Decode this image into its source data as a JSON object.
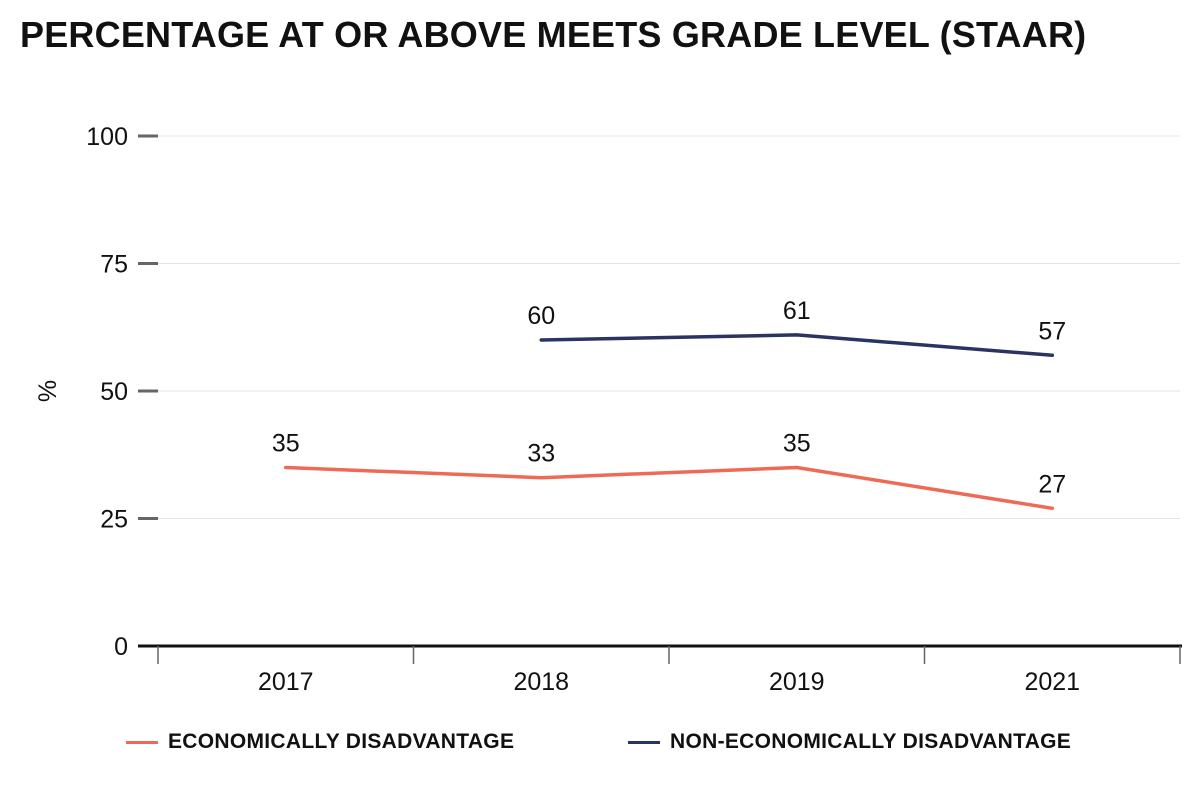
{
  "chart_data": {
    "type": "line",
    "title": "PERCENTAGE AT OR ABOVE MEETS GRADE LEVEL (STAAR)",
    "xlabel": "",
    "ylabel": "%",
    "categories": [
      "2017",
      "2018",
      "2019",
      "2021"
    ],
    "ylim": [
      0,
      100
    ],
    "yticks": [
      0,
      25,
      50,
      75,
      100
    ],
    "ytick_labels": [
      "0",
      "25",
      "50",
      "75",
      "100"
    ],
    "grid": true,
    "legend_position": "bottom",
    "series": [
      {
        "name": "ECONOMICALLY DISADVANTAGE",
        "color": "#ef6a55",
        "values": [
          35,
          33,
          35,
          27
        ],
        "labels": [
          "35",
          "33",
          "35",
          "27"
        ]
      },
      {
        "name": "NON-ECONOMICALLY DISADVANTAGE",
        "color": "#2a3463",
        "values": [
          null,
          60,
          61,
          57
        ],
        "labels": [
          "",
          "60",
          "61",
          "57"
        ]
      }
    ]
  }
}
